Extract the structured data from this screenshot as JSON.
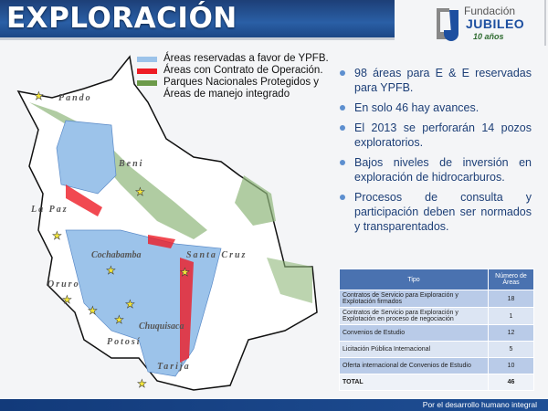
{
  "header": {
    "title": "EXPLORACIÓN"
  },
  "logo": {
    "line1": "Fundación",
    "line2": "JUBILEO",
    "line3": "10 años"
  },
  "legend": [
    {
      "label": "Áreas reservadas a favor de YPFB.",
      "color": "#9cc3ea"
    },
    {
      "label": "Áreas con Contrato de Operación.",
      "color": "#ee1c25"
    },
    {
      "label": "Parques Nacionales Protegidos y Áreas de manejo integrado",
      "color": "#6c9a4a"
    }
  ],
  "map": {
    "regions": [
      "Pando",
      "Beni",
      "La Paz",
      "Cochabamba",
      "Santa Cruz",
      "Oruro",
      "Chuquisaca",
      "Potosí",
      "Tarija"
    ]
  },
  "bullets": [
    "98 áreas  para E & E reservadas para YPFB.",
    "En solo 46 hay avances.",
    "El 2013 se perforarán 14 pozos exploratorios.",
    "Bajos niveles de inversión en exploración de hidrocarburos.",
    "Procesos de consulta y participación deben ser normados y transparentados."
  ],
  "table": {
    "headers": [
      "Tipo",
      "Número de Áreas"
    ],
    "rows": [
      [
        "Contratos de Servicio para Exploración y Explotación firmados",
        "18"
      ],
      [
        "Contratos de Servicio para Exploración y Explotación en proceso de negociación",
        "1"
      ],
      [
        "Convenios de Estudio",
        "12"
      ],
      [
        "Licitación Pública Internacional",
        "5"
      ],
      [
        "Oferta internacional de Convenios de Estudio",
        "10"
      ]
    ],
    "total": [
      "TOTAL",
      "46"
    ]
  },
  "footer": {
    "text": "Por el desarrollo humano integral"
  }
}
